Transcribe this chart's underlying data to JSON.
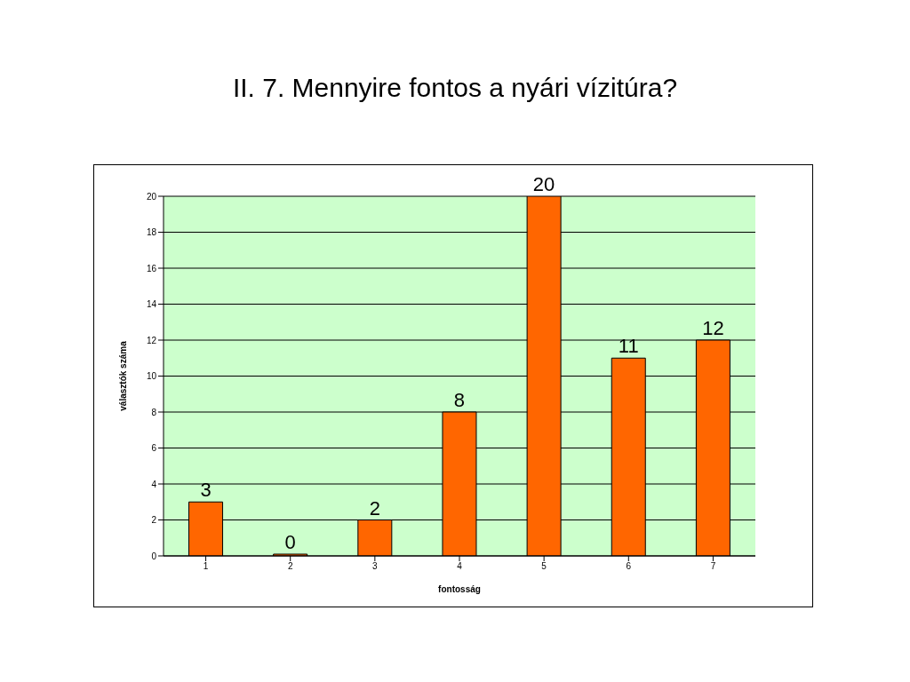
{
  "chart_data": {
    "type": "bar",
    "title": "II. 7. Mennyire fontos a nyári vízitúra?",
    "xlabel": "fontosság",
    "ylabel": "választók száma",
    "categories": [
      "1",
      "2",
      "3",
      "4",
      "5",
      "6",
      "7"
    ],
    "values": [
      3,
      0,
      2,
      8,
      20,
      11,
      12
    ],
    "color": "#ff6600",
    "ylim": [
      0,
      20
    ],
    "yticks": [
      0,
      2,
      4,
      6,
      8,
      10,
      12,
      14,
      16,
      18,
      20
    ],
    "grid": "y",
    "data_labels": true
  }
}
